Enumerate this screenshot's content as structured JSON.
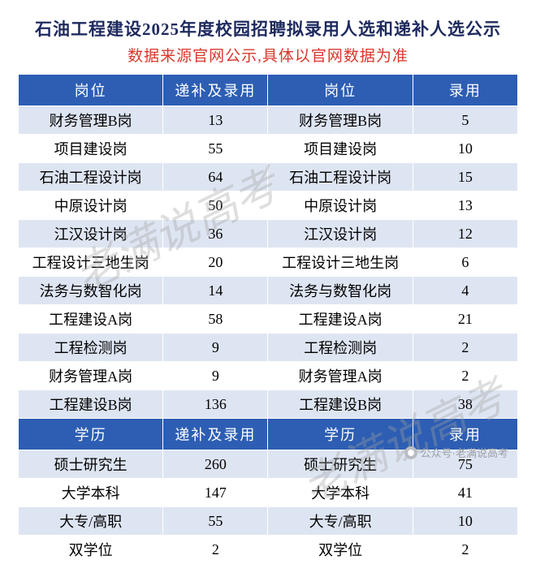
{
  "title": "石油工程建设2025年度校园招聘拟录用人选和递补人选公示",
  "subtitle": "数据来源官网公示,具体以官网数据为准",
  "watermark_text": "老满说高考",
  "footer_text": "公众号·老满说高考",
  "colors": {
    "header_bg": "#2d5eb3",
    "header_fg": "#ffffff",
    "row_alt_bg": "#dee5f2",
    "row_bg": "#ffffff",
    "title_color": "#1e2a5e",
    "subtitle_color": "#d9372c",
    "watermark_color": "rgba(160,160,160,0.35)"
  },
  "col_widths_pct": [
    29,
    21,
    29,
    21
  ],
  "section1": {
    "headers": [
      "岗位",
      "递补及录用",
      "岗位",
      "录用"
    ],
    "rows": [
      [
        "财务管理B岗",
        "13",
        "财务管理B岗",
        "5"
      ],
      [
        "项目建设岗",
        "55",
        "项目建设岗",
        "10"
      ],
      [
        "石油工程设计岗",
        "64",
        "石油工程设计岗",
        "15"
      ],
      [
        "中原设计岗",
        "50",
        "中原设计岗",
        "13"
      ],
      [
        "江汉设计岗",
        "36",
        "江汉设计岗",
        "12"
      ],
      [
        "工程设计三地生岗",
        "20",
        "工程设计三地生岗",
        "6"
      ],
      [
        "法务与数智化岗",
        "14",
        "法务与数智化岗",
        "4"
      ],
      [
        "工程建设A岗",
        "58",
        "工程建设A岗",
        "21"
      ],
      [
        "工程检测岗",
        "9",
        "工程检测岗",
        "2"
      ],
      [
        "财务管理A岗",
        "9",
        "财务管理A岗",
        "2"
      ],
      [
        "工程建设B岗",
        "136",
        "工程建设B岗",
        "38"
      ]
    ]
  },
  "section2": {
    "headers": [
      "学历",
      "递补及录用",
      "学历",
      "录用"
    ],
    "rows": [
      [
        "硕士研究生",
        "260",
        "硕士研究生",
        "75"
      ],
      [
        "大学本科",
        "147",
        "大学本科",
        "41"
      ],
      [
        "大专/高职",
        "55",
        "大专/高职",
        "10"
      ],
      [
        "双学位",
        "2",
        "双学位",
        "2"
      ]
    ]
  }
}
